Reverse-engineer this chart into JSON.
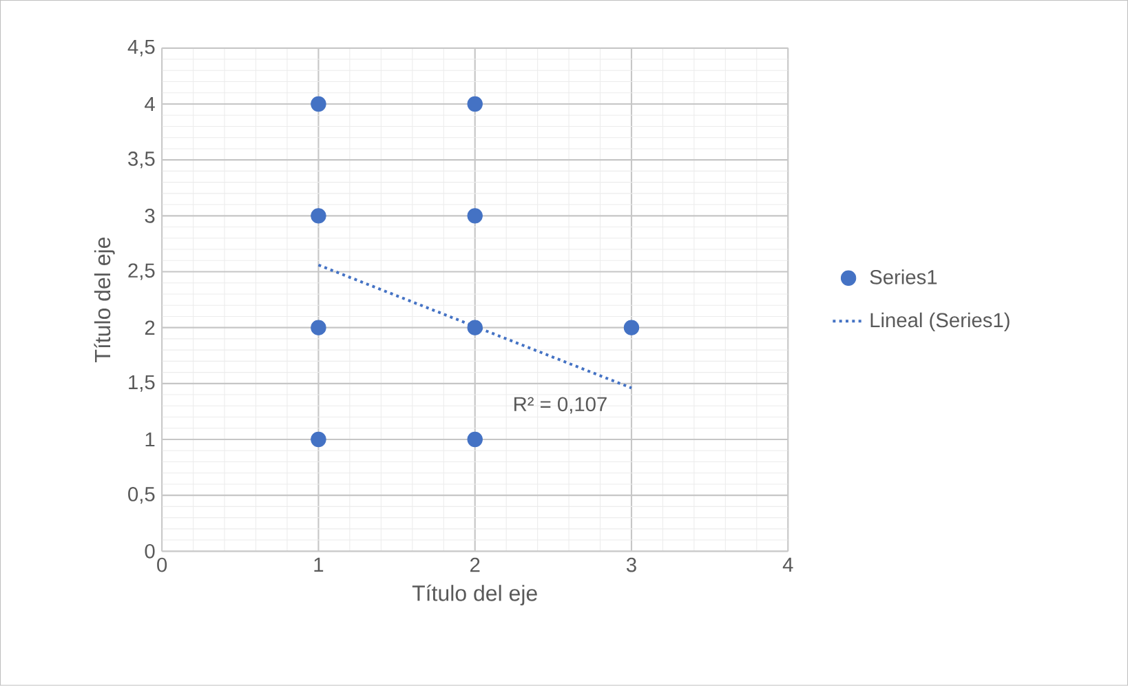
{
  "chart_data": {
    "type": "scatter",
    "xlabel": "Título del eje",
    "ylabel": "Título del eje",
    "series": [
      {
        "name": "Series1",
        "color": "#4472c4",
        "x": [
          1,
          1,
          1,
          1,
          2,
          2,
          2,
          2,
          3
        ],
        "values": [
          4,
          3,
          2,
          1,
          4,
          3,
          2,
          1,
          2
        ]
      },
      {
        "name": "Lineal (Series1)",
        "type": "line",
        "color": "#4472c4",
        "marker": "none",
        "line_style": "dotted",
        "x": [
          1,
          3
        ],
        "values": [
          2.56,
          1.46
        ]
      }
    ],
    "xlim": [
      0,
      4
    ],
    "xticks": [
      0,
      1,
      2,
      3,
      4
    ],
    "ylim": [
      0,
      4.5
    ],
    "yticks": [
      0,
      {
        "value": 0.5,
        "label": "0,5"
      },
      1,
      {
        "value": 1.5,
        "label": "1,5"
      },
      2,
      {
        "value": 2.5,
        "label": "2,5"
      },
      3,
      {
        "value": 3.5,
        "label": "3,5"
      },
      4,
      {
        "value": 4.5,
        "label": "4,5"
      }
    ],
    "grid": true,
    "legend": "right",
    "annotations": [
      "R² = 0,107"
    ]
  }
}
